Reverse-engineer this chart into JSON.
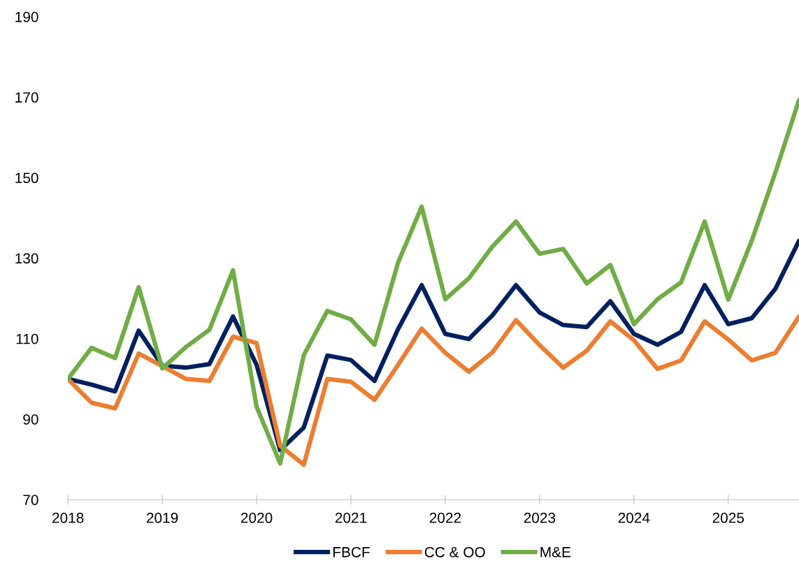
{
  "chart_data": {
    "type": "line",
    "x": [
      2018,
      2018.25,
      2018.5,
      2018.75,
      2019,
      2019.25,
      2019.5,
      2019.75,
      2020,
      2020.25,
      2020.5,
      2020.75,
      2021,
      2021.25,
      2021.5,
      2021.75,
      2022,
      2022.25,
      2022.5,
      2022.75,
      2023,
      2023.25,
      2023.5,
      2023.75,
      2024,
      2024.25,
      2024.5,
      2024.75,
      2025,
      2025.25,
      2025.5,
      2025.75
    ],
    "series": [
      {
        "name": "FBCF",
        "color": "#002060",
        "values": [
          100,
          98.6,
          96.9,
          112.0,
          103.3,
          102.8,
          103.7,
          115.5,
          103.5,
          82.3,
          87.9,
          105.8,
          104.7,
          99.5,
          112.4,
          123.3,
          111.2,
          109.9,
          115.8,
          123.3,
          116.5,
          113.4,
          112.9,
          119.3,
          111.2,
          108.5,
          111.7,
          123.3,
          113.6,
          115.1,
          122.4,
          134.3
        ]
      },
      {
        "name": "CC & OO",
        "color": "#ed7d31",
        "values": [
          100,
          94.1,
          92.7,
          106.3,
          103.2,
          100.0,
          99.5,
          110.5,
          108.9,
          83.4,
          78.7,
          100.0,
          99.3,
          94.8,
          103.5,
          112.5,
          106.5,
          101.8,
          106.6,
          114.6,
          108.4,
          102.8,
          107.0,
          114.3,
          109.6,
          102.5,
          104.6,
          114.3,
          109.8,
          104.6,
          106.5,
          115.5
        ]
      },
      {
        "name": "M&E",
        "color": "#70ad47",
        "values": [
          100,
          107.7,
          105.2,
          122.8,
          102.6,
          107.9,
          112.2,
          127.0,
          93.1,
          79.0,
          105.9,
          116.9,
          114.8,
          108.5,
          128.9,
          142.8,
          119.8,
          125.0,
          132.9,
          139.1,
          131.1,
          132.3,
          123.7,
          128.3,
          113.6,
          119.8,
          124.0,
          139.1,
          119.7,
          134.4,
          151.3,
          169.3
        ]
      }
    ],
    "xlim": [
      2018,
      2025.75
    ],
    "xticks": [
      2018,
      2019,
      2020,
      2021,
      2022,
      2023,
      2024,
      2025
    ],
    "ylim": [
      70,
      190
    ],
    "yticks": [
      70,
      90,
      110,
      130,
      150,
      170,
      190
    ],
    "grid": false,
    "legend": "bottom",
    "marker": "none",
    "line_style": "solid"
  }
}
